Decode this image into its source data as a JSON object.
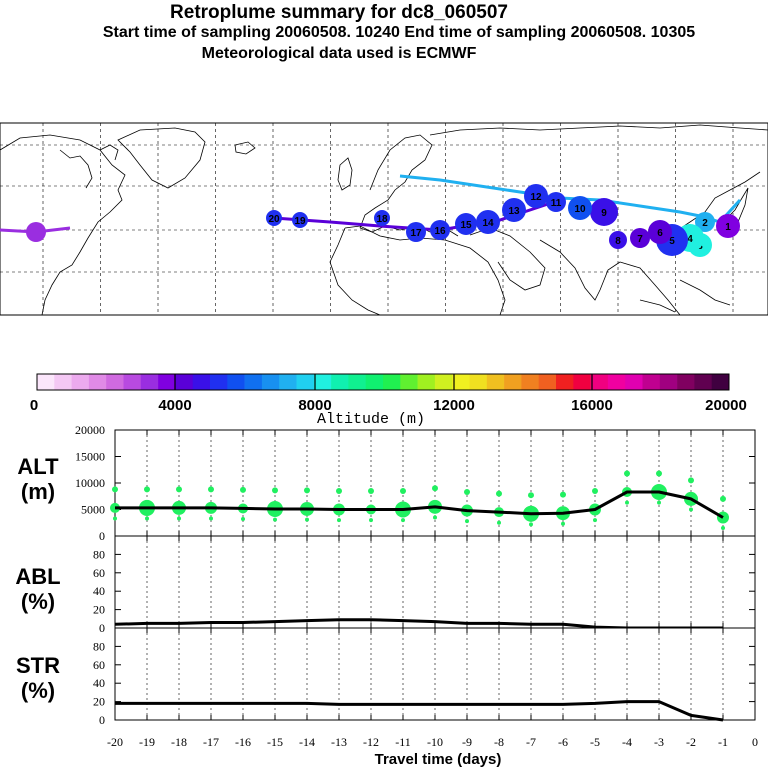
{
  "header": {
    "title": "Retroplume summary for dc8_060507",
    "subtitle": "Start time of sampling 20060508. 10240     End time of sampling 20060508. 10305",
    "met": "Meteorological data used is ECMWF"
  },
  "colorbar": {
    "title": "Altitude (m)",
    "ticks": [
      "0",
      "4000",
      "8000",
      "12000",
      "16000",
      "20000"
    ],
    "colors": [
      "#fbe6fb",
      "#f4c8f4",
      "#ecaaee",
      "#e08ae6",
      "#d06ae0",
      "#b84ae0",
      "#9a2ee0",
      "#8000e0",
      "#5a00d8",
      "#3a10e8",
      "#2030f0",
      "#1050f0",
      "#1070f0",
      "#1890f0",
      "#20b0f0",
      "#20d0f0",
      "#20f0e0",
      "#10f0b0",
      "#10f090",
      "#10f070",
      "#20f050",
      "#60f030",
      "#a0f020",
      "#d0f020",
      "#f0f020",
      "#f0e020",
      "#f0c020",
      "#f0a020",
      "#f08020",
      "#f06020",
      "#f02020",
      "#f00040",
      "#f00080",
      "#f000a0",
      "#e000b0",
      "#c00090",
      "#a00080",
      "#800060",
      "#600050",
      "#400040"
    ]
  },
  "map": {
    "plume_labels": [
      "1",
      "2",
      "3",
      "4",
      "5",
      "6",
      "7",
      "8",
      "9",
      "10",
      "11",
      "12",
      "13",
      "14",
      "15",
      "16",
      "17",
      "18",
      "19",
      "20"
    ]
  },
  "chart_data": [
    {
      "type": "line",
      "panel": "ALT",
      "ylabel": "ALT\n(m)",
      "ylim": [
        0,
        20000
      ],
      "yticks": [
        "0",
        "5000",
        "10000",
        "15000",
        "20000"
      ],
      "x": [
        -20,
        -19,
        -18,
        -17,
        -16,
        -15,
        -14,
        -13,
        -12,
        -11,
        -10,
        -9,
        -8,
        -7,
        -6,
        -5,
        -4,
        -3,
        -2,
        -1
      ],
      "values": [
        5300,
        5300,
        5300,
        5300,
        5200,
        5100,
        5100,
        5000,
        5000,
        5000,
        5500,
        4800,
        4500,
        4200,
        4300,
        5000,
        8300,
        8300,
        7000,
        3500
      ],
      "marker_color": "#20f060"
    },
    {
      "type": "line",
      "panel": "ABL",
      "ylabel": "ABL\n(%)",
      "ylim": [
        0,
        100
      ],
      "yticks": [
        "0",
        "20",
        "40",
        "60",
        "80"
      ],
      "x": [
        -20,
        -19,
        -18,
        -17,
        -16,
        -15,
        -14,
        -13,
        -12,
        -11,
        -10,
        -9,
        -8,
        -7,
        -6,
        -5,
        -4,
        -3,
        -2,
        -1
      ],
      "values": [
        4,
        5,
        5,
        6,
        6,
        7,
        8,
        9,
        9,
        8,
        7,
        5,
        5,
        4,
        4,
        1,
        0,
        0,
        0,
        0
      ]
    },
    {
      "type": "line",
      "panel": "STR",
      "ylabel": "STR\n(%)",
      "ylim": [
        0,
        100
      ],
      "yticks": [
        "0",
        "20",
        "40",
        "60",
        "80"
      ],
      "x": [
        -20,
        -19,
        -18,
        -17,
        -16,
        -15,
        -14,
        -13,
        -12,
        -11,
        -10,
        -9,
        -8,
        -7,
        -6,
        -5,
        -4,
        -3,
        -2,
        -1
      ],
      "values": [
        18,
        18,
        18,
        18,
        18,
        18,
        18,
        17,
        17,
        17,
        17,
        17,
        17,
        17,
        17,
        18,
        20,
        20,
        5,
        0
      ]
    }
  ],
  "xaxis": {
    "title": "Travel time (days)",
    "ticks": [
      "-20",
      "-19",
      "-18",
      "-17",
      "-16",
      "-15",
      "-14",
      "-13",
      "-12",
      "-11",
      "-10",
      "-9",
      "-8",
      "-7",
      "-6",
      "-5",
      "-4",
      "-3",
      "-2",
      "-1",
      "0"
    ]
  }
}
